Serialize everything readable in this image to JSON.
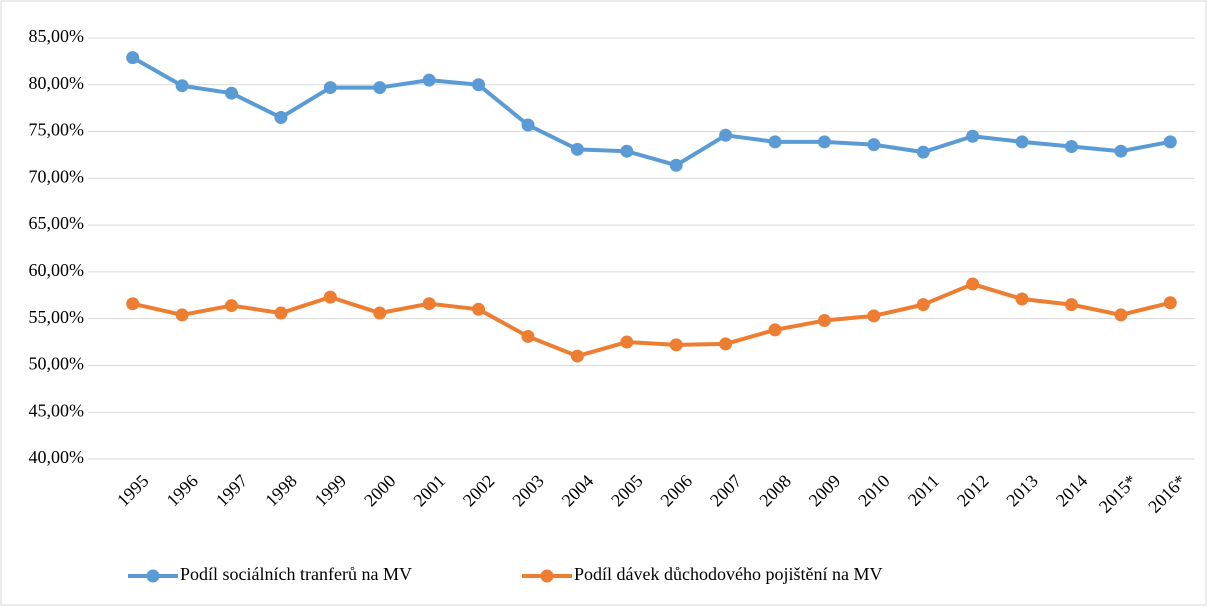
{
  "chart_data": {
    "type": "line",
    "categories": [
      "1995",
      "1996",
      "1997",
      "1998",
      "1999",
      "2000",
      "2001",
      "2002",
      "2003",
      "2004",
      "2005",
      "2006",
      "2007",
      "2008",
      "2009",
      "2010",
      "2011",
      "2012",
      "2013",
      "2014",
      "2015*",
      "2016*"
    ],
    "series": [
      {
        "name": "Podíl sociálních tranferů na MV",
        "color": "#5b9bd5",
        "values": [
          82.9,
          79.9,
          79.1,
          76.5,
          79.7,
          79.7,
          80.5,
          80.0,
          75.7,
          73.1,
          72.9,
          71.4,
          74.6,
          73.9,
          73.9,
          73.6,
          72.8,
          74.5,
          73.9,
          73.4,
          72.9,
          73.9
        ]
      },
      {
        "name": "Podíl dávek důchodového pojištění na MV",
        "color": "#ed7d31",
        "values": [
          56.6,
          55.4,
          56.4,
          55.6,
          57.3,
          55.6,
          56.6,
          56.0,
          53.1,
          51.0,
          52.5,
          52.2,
          52.3,
          53.8,
          54.8,
          55.3,
          56.5,
          58.7,
          57.1,
          56.5,
          55.4,
          56.7
        ]
      }
    ],
    "ylim": [
      40,
      85
    ],
    "yticks": [
      {
        "value": 40,
        "label": "40,00%"
      },
      {
        "value": 45,
        "label": "45,00%"
      },
      {
        "value": 50,
        "label": "50,00%"
      },
      {
        "value": 55,
        "label": "55,00%"
      },
      {
        "value": 60,
        "label": "60,00%"
      },
      {
        "value": 65,
        "label": "65,00%"
      },
      {
        "value": 70,
        "label": "70,00%"
      },
      {
        "value": 75,
        "label": "75,00%"
      },
      {
        "value": 80,
        "label": "80,00%"
      },
      {
        "value": 85,
        "label": "85,00%"
      }
    ],
    "grid": true,
    "legend": "bottom"
  }
}
